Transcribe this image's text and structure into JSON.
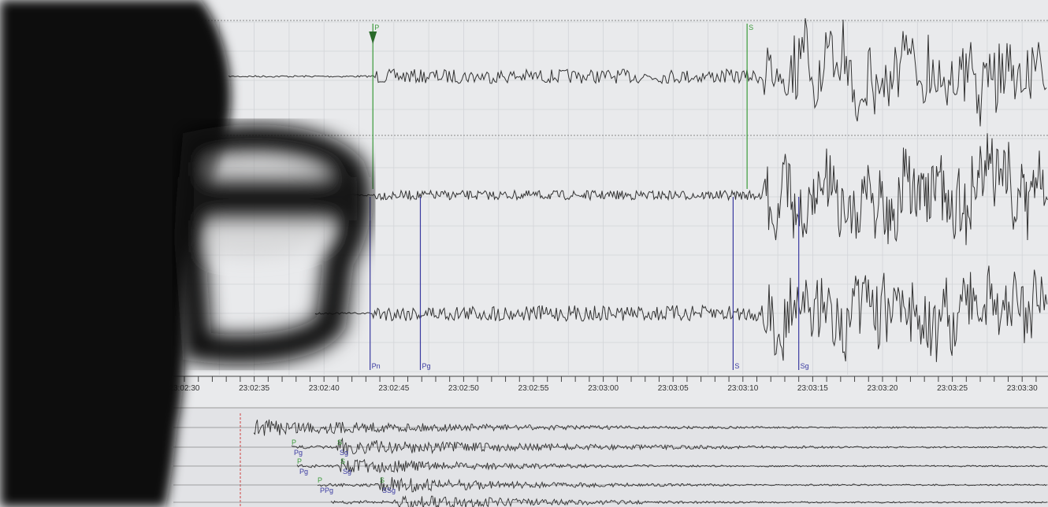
{
  "seismogram": {
    "time_axis": {
      "ticks": [
        "23:02:30",
        "23:02:35",
        "23:02:40",
        "23:02:45",
        "23:02:50",
        "23:02:55",
        "23:03:00",
        "23:03:05",
        "23:03:10",
        "23:03:15",
        "23:03:20",
        "23:03:25",
        "23:03:30"
      ]
    },
    "upper_picks": [
      {
        "label": "P",
        "time": "23:02:43.5",
        "color": "#3a9a3a"
      },
      {
        "label": "S",
        "time": "23:03:10.3",
        "color": "#3a9a3a"
      }
    ],
    "lower_picks": [
      {
        "label": "Pn",
        "time": "23:02:43.3",
        "color": "#3a3aa0"
      },
      {
        "label": "Pg",
        "time": "23:02:46.9",
        "color": "#3a3aa0"
      },
      {
        "label": "S",
        "time": "23:03:09.3",
        "color": "#3a3aa0"
      },
      {
        "label": "Sg",
        "time": "23:03:14.0",
        "color": "#3a3aa0"
      }
    ],
    "overview_picks": [
      {
        "p": "P",
        "p2": "Pg",
        "s": "S",
        "s2": "Sg"
      },
      {
        "p": "P",
        "p2": "Pg",
        "s": "S",
        "s2": "Sg"
      },
      {
        "p": "P",
        "p2": "PPg",
        "s": "S",
        "s2": "SSg"
      }
    ],
    "colors": {
      "background": "#e9eaec",
      "grid": "#d2d4d8",
      "trace": "#333333",
      "p_pick": "#3a9a3a",
      "phase_pick": "#3a3aa0",
      "origin_marker": "#d04040"
    }
  }
}
